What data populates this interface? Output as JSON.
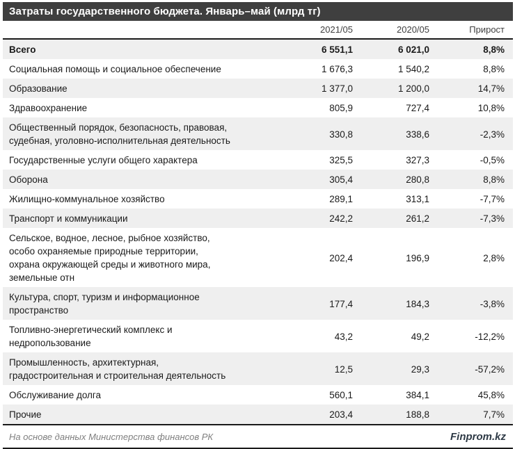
{
  "title": "Затраты государственного бюджета. Январь–май (млрд тг)",
  "colors": {
    "header_bg": "#3f3f3f",
    "zebra": "#efefef",
    "rule": "#1a1a1a",
    "brand": "#2e3a46",
    "source_text": "#808080"
  },
  "table": {
    "columns": {
      "c2021": "2021/05",
      "c2020": "2020/05",
      "growth": "Прирост"
    },
    "rows": [
      {
        "label": "Всего",
        "v2021": "6 551,1",
        "v2020": "6 021,0",
        "growth": "8,8%"
      },
      {
        "label": "Социальная помощь и социальное обеспечение",
        "v2021": "1 676,3",
        "v2020": "1 540,2",
        "growth": "8,8%"
      },
      {
        "label": "Образование",
        "v2021": "1 377,0",
        "v2020": "1 200,0",
        "growth": "14,7%"
      },
      {
        "label": "Здравоохранение",
        "v2021": "805,9",
        "v2020": "727,4",
        "growth": "10,8%"
      },
      {
        "label": "Общественный порядок, безопасность, правовая,\nсудебная, уголовно-исполнительная деятельность",
        "v2021": "330,8",
        "v2020": "338,6",
        "growth": "-2,3%"
      },
      {
        "label": "Государственные услуги общего характера",
        "v2021": "325,5",
        "v2020": "327,3",
        "growth": "-0,5%"
      },
      {
        "label": "Оборона",
        "v2021": "305,4",
        "v2020": "280,8",
        "growth": "8,8%"
      },
      {
        "label": "Жилищно-коммунальное хозяйство",
        "v2021": "289,1",
        "v2020": "313,1",
        "growth": "-7,7%"
      },
      {
        "label": "Транспорт и коммуникации",
        "v2021": "242,2",
        "v2020": "261,2",
        "growth": "-7,3%"
      },
      {
        "label": "Сельское, водное, лесное, рыбное хозяйство,\nособо охраняемые природные территории,\nохрана окружающей среды и животного мира,\nземельные отн",
        "v2021": "202,4",
        "v2020": "196,9",
        "growth": "2,8%"
      },
      {
        "label": "Культура, спорт, туризм и информационное\nпространство",
        "v2021": "177,4",
        "v2020": "184,3",
        "growth": "-3,8%"
      },
      {
        "label": "Топливно-энергетический комплекс и\nнедропользование",
        "v2021": "43,2",
        "v2020": "49,2",
        "growth": "-12,2%"
      },
      {
        "label": "Промышленность, архитектурная,\nградостроительная и строительная деятельность",
        "v2021": "12,5",
        "v2020": "29,3",
        "growth": "-57,2%"
      },
      {
        "label": "Обслуживание долга",
        "v2021": "560,1",
        "v2020": "384,1",
        "growth": "45,8%"
      },
      {
        "label": "Прочие",
        "v2021": "203,4",
        "v2020": "188,8",
        "growth": "7,7%"
      }
    ]
  },
  "footer": {
    "source": "На основе данных Министерства финансов РК",
    "brand": "Finprom.kz"
  },
  "chart_data": {
    "type": "table",
    "title": "Затраты государственного бюджета. Январь–май (млрд тг)",
    "categories": [
      "Всего",
      "Социальная помощь и социальное обеспечение",
      "Образование",
      "Здравоохранение",
      "Общественный порядок, безопасность, правовая, судебная, уголовно-исполнительная деятельность",
      "Государственные услуги общего характера",
      "Оборона",
      "Жилищно-коммунальное хозяйство",
      "Транспорт и коммуникации",
      "Сельское, водное, лесное, рыбное хозяйство, особо охраняемые природные территории, охрана окружающей среды и животного мира, земельные отн",
      "Культура, спорт, туризм и информационное пространство",
      "Топливно-энергетический комплекс и недропользование",
      "Промышленность, архитектурная, градостроительная и строительная деятельность",
      "Обслуживание долга",
      "Прочие"
    ],
    "series": [
      {
        "name": "2021/05",
        "values": [
          6551.1,
          1676.3,
          1377.0,
          805.9,
          330.8,
          325.5,
          305.4,
          289.1,
          242.2,
          202.4,
          177.4,
          43.2,
          12.5,
          560.1,
          203.4
        ]
      },
      {
        "name": "2020/05",
        "values": [
          6021.0,
          1540.2,
          1200.0,
          727.4,
          338.6,
          327.3,
          280.8,
          313.1,
          261.2,
          196.9,
          184.3,
          49.2,
          29.3,
          384.1,
          188.8
        ]
      },
      {
        "name": "Прирост, %",
        "values": [
          8.8,
          8.8,
          14.7,
          10.8,
          -2.3,
          -0.5,
          8.8,
          -7.7,
          -7.3,
          2.8,
          -3.8,
          -12.2,
          -57.2,
          45.8,
          7.7
        ]
      }
    ],
    "units": "млрд тг"
  }
}
